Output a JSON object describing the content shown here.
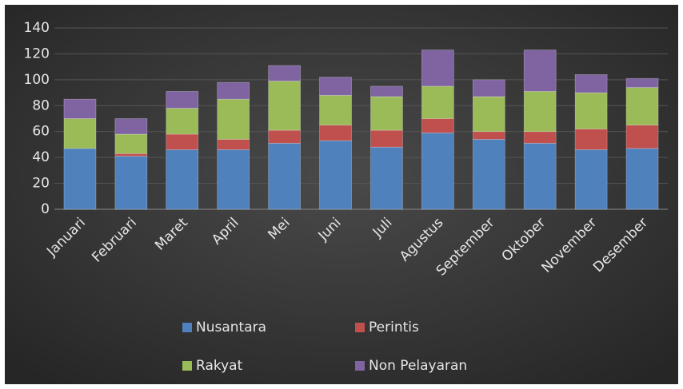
{
  "chart_data": {
    "type": "stacked_bar",
    "categories": [
      "Januari",
      "Februari",
      "Maret",
      "April",
      "Mei",
      "Juni",
      "Juli",
      "Agustus",
      "September",
      "Oktober",
      "November",
      "Desember"
    ],
    "series": [
      {
        "name": "Nusantara",
        "color": "#4f81bd",
        "values": [
          47,
          41,
          46,
          46,
          51,
          53,
          48,
          59,
          54,
          51,
          46,
          47
        ]
      },
      {
        "name": "Perintis",
        "color": "#c0504d",
        "values": [
          0,
          2,
          12,
          8,
          10,
          12,
          13,
          11,
          6,
          9,
          16,
          18
        ]
      },
      {
        "name": "Rakyat",
        "color": "#9bbb59",
        "values": [
          23,
          15,
          20,
          31,
          38,
          23,
          26,
          25,
          27,
          31,
          28,
          29
        ]
      },
      {
        "name": "Non Pelayaran",
        "color": "#8064a2",
        "values": [
          15,
          12,
          13,
          13,
          12,
          14,
          8,
          28,
          13,
          32,
          14,
          7
        ]
      }
    ],
    "ylim": [
      0,
      140
    ],
    "yticks": [
      0,
      20,
      40,
      60,
      80,
      100,
      120,
      140
    ],
    "grid": true,
    "legend": "bottom"
  }
}
